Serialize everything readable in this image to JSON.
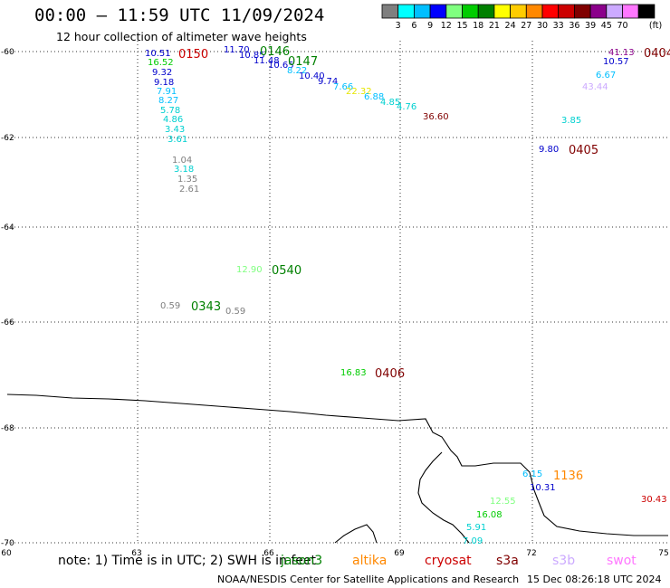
{
  "title": "00:00 – 11:59 UTC 11/09/2024",
  "subtitle": "12 hour collection of altimeter wave heights",
  "note": "note: 1) Time is in UTC; 2) SWH is in feet",
  "credit": "NOAA/NESDIS Center for Satellite Applications and Research",
  "credit_date": "15 Dec 08:26:18 UTC 2024",
  "scale": {
    "unit": "(ft)",
    "labels": [
      "3",
      "6",
      "9",
      "12",
      "15",
      "18",
      "21",
      "24",
      "27",
      "30",
      "33",
      "36",
      "39",
      "45",
      "70"
    ],
    "colors": [
      "#7f7f7f",
      "#00ffff",
      "#00bfff",
      "#0000ff",
      "#7fff7f",
      "#00cc00",
      "#008000",
      "#ffff00",
      "#ffcc00",
      "#ff8800",
      "#ff0000",
      "#cc0000",
      "#800000",
      "#8b008b",
      "#ccaaff",
      "#ff77ff",
      "#000000"
    ]
  },
  "satellites": [
    {
      "name": "jason3",
      "color": "#008000"
    },
    {
      "name": "altika",
      "color": "#ff8800"
    },
    {
      "name": "cryosat",
      "color": "#cc0000"
    },
    {
      "name": "s3a",
      "color": "#800000"
    },
    {
      "name": "s3b",
      "color": "#ccaaff"
    },
    {
      "name": "swot",
      "color": "#ff77ff"
    }
  ],
  "map": {
    "lon_ticks": [
      "60",
      "63",
      "66",
      "69",
      "72",
      "75"
    ],
    "lat_ticks": [
      "-60",
      "-62",
      "-64",
      "-66",
      "-68",
      "-70"
    ]
  },
  "observations": [
    {
      "v": "10.51",
      "c": "#0000cc"
    },
    {
      "v": "16.52",
      "c": "#00cc00"
    },
    {
      "v": "9.32",
      "c": "#0000cc"
    },
    {
      "v": "9.18",
      "c": "#0000cc"
    },
    {
      "v": "7.91",
      "c": "#00bfff"
    },
    {
      "v": "8.27",
      "c": "#00bfff"
    },
    {
      "v": "5.78",
      "c": "#00d0d0"
    },
    {
      "v": "4.86",
      "c": "#00d0d0"
    },
    {
      "v": "3.43",
      "c": "#00d0d0"
    },
    {
      "v": "3.61",
      "c": "#00d0d0"
    },
    {
      "v": "1.04",
      "c": "#7f7f7f"
    },
    {
      "v": "3.18",
      "c": "#00d0d0"
    },
    {
      "v": "1.35",
      "c": "#7f7f7f"
    },
    {
      "v": "2.61",
      "c": "#7f7f7f"
    },
    {
      "v": "11.70",
      "c": "#0000cc"
    },
    {
      "v": "10.85",
      "c": "#0000cc"
    },
    {
      "v": "11.48",
      "c": "#0000cc"
    },
    {
      "v": "10.65",
      "c": "#0000cc"
    },
    {
      "v": "8.22",
      "c": "#00bfff"
    },
    {
      "v": "10.40",
      "c": "#0000cc"
    },
    {
      "v": "9.74",
      "c": "#0000cc"
    },
    {
      "v": "7.66",
      "c": "#00bfff"
    },
    {
      "v": "22.32",
      "c": "#e6e600"
    },
    {
      "v": "6.88",
      "c": "#00bfff"
    },
    {
      "v": "4.85",
      "c": "#00d0d0"
    },
    {
      "v": "4.76",
      "c": "#00d0d0"
    },
    {
      "v": "36.60",
      "c": "#800000"
    },
    {
      "v": "41.13",
      "c": "#8b008b"
    },
    {
      "v": "10.57",
      "c": "#0000cc"
    },
    {
      "v": "6.67",
      "c": "#00bfff"
    },
    {
      "v": "43.44",
      "c": "#ccaaff"
    },
    {
      "v": "3.85",
      "c": "#00d0d0"
    },
    {
      "v": "9.80",
      "c": "#0000cc"
    },
    {
      "v": "12.90",
      "c": "#7fff7f"
    },
    {
      "v": "0.59",
      "c": "#7f7f7f"
    },
    {
      "v": "0.59",
      "c": "#7f7f7f"
    },
    {
      "v": "16.83",
      "c": "#00cc00"
    },
    {
      "v": "6.15",
      "c": "#00bfff"
    },
    {
      "v": "10.31",
      "c": "#0000cc"
    },
    {
      "v": "12.55",
      "c": "#7fff7f"
    },
    {
      "v": "16.08",
      "c": "#00cc00"
    },
    {
      "v": "5.91",
      "c": "#00d0d0"
    },
    {
      "v": "7.09",
      "c": "#00d0d0"
    },
    {
      "v": "30.43",
      "c": "#cc0000"
    }
  ],
  "time_labels": [
    {
      "t": "0150",
      "c": "#cc0000"
    },
    {
      "t": "0146",
      "c": "#008000"
    },
    {
      "t": "0147",
      "c": "#008000"
    },
    {
      "t": "0405",
      "c": "#800000"
    },
    {
      "t": "0404",
      "c": "#800000"
    },
    {
      "t": "0540",
      "c": "#008000"
    },
    {
      "t": "0343",
      "c": "#008000"
    },
    {
      "t": "0406",
      "c": "#800000"
    },
    {
      "t": "1136",
      "c": "#ff8800"
    }
  ]
}
